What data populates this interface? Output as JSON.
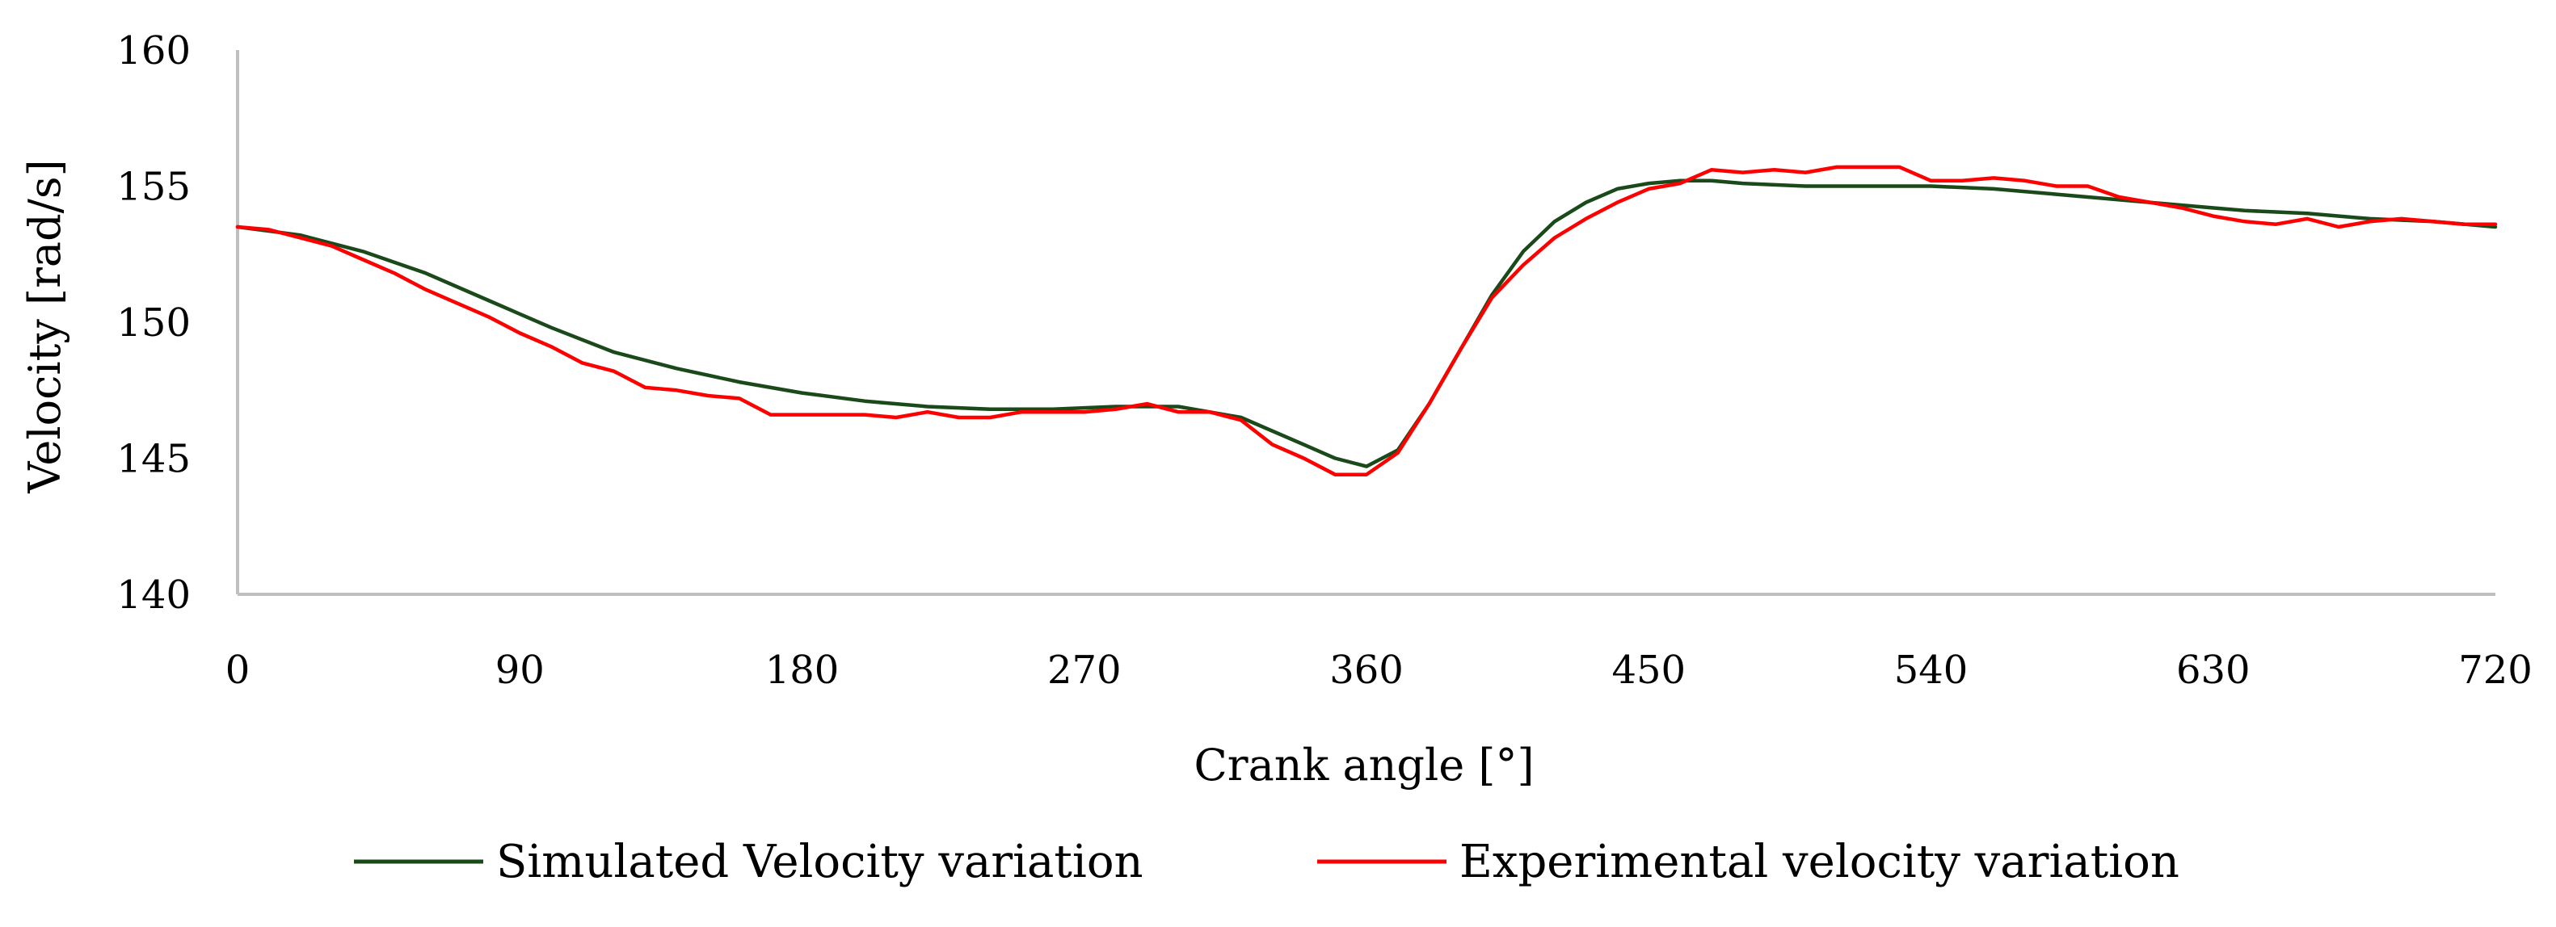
{
  "chart_data": {
    "type": "line",
    "title": "",
    "xlabel": "Crank angle [°]",
    "ylabel": "Velocity [rad/s]",
    "xlim": [
      0,
      720
    ],
    "ylim": [
      140,
      160
    ],
    "x_ticks": [
      "0",
      "90",
      "180",
      "270",
      "360",
      "450",
      "540",
      "630",
      "720"
    ],
    "x_tick_values": [
      0,
      90,
      180,
      270,
      360,
      450,
      540,
      630,
      720
    ],
    "y_ticks": [
      "140",
      "145",
      "150",
      "155",
      "160"
    ],
    "y_tick_values": [
      140,
      145,
      150,
      155,
      160
    ],
    "grid": false,
    "legend_position": "bottom",
    "series": [
      {
        "name": "Simulated Velocity variation",
        "color": "#1a4a1a",
        "x": [
          0,
          20,
          40,
          60,
          80,
          100,
          120,
          140,
          160,
          180,
          200,
          220,
          240,
          260,
          280,
          300,
          320,
          340,
          350,
          360,
          370,
          380,
          390,
          400,
          410,
          420,
          430,
          440,
          450,
          460,
          470,
          480,
          500,
          520,
          540,
          560,
          580,
          600,
          620,
          640,
          660,
          680,
          700,
          720
        ],
        "y": [
          153.5,
          153.2,
          152.6,
          151.8,
          150.8,
          149.8,
          148.9,
          148.3,
          147.8,
          147.4,
          147.1,
          146.9,
          146.8,
          146.8,
          146.9,
          146.9,
          146.5,
          145.5,
          145.0,
          144.7,
          145.3,
          147.0,
          149.0,
          151.0,
          152.6,
          153.7,
          154.4,
          154.9,
          155.1,
          155.2,
          155.2,
          155.1,
          155.0,
          155.0,
          155.0,
          154.9,
          154.7,
          154.5,
          154.3,
          154.1,
          154.0,
          153.8,
          153.7,
          153.5
        ]
      },
      {
        "name": "Experimental velocity variation",
        "color": "#ff0000",
        "x": [
          0,
          10,
          20,
          30,
          40,
          50,
          60,
          70,
          80,
          90,
          100,
          110,
          120,
          130,
          140,
          150,
          160,
          170,
          180,
          190,
          200,
          210,
          220,
          230,
          240,
          250,
          260,
          270,
          280,
          290,
          300,
          310,
          320,
          330,
          340,
          350,
          360,
          370,
          380,
          390,
          400,
          410,
          420,
          430,
          440,
          450,
          460,
          470,
          480,
          490,
          500,
          510,
          520,
          530,
          540,
          550,
          560,
          570,
          580,
          590,
          600,
          610,
          620,
          630,
          640,
          650,
          660,
          670,
          680,
          690,
          700,
          710,
          720
        ],
        "y": [
          153.5,
          153.4,
          153.1,
          152.8,
          152.3,
          151.8,
          151.2,
          150.7,
          150.2,
          149.6,
          149.1,
          148.5,
          148.2,
          147.6,
          147.5,
          147.3,
          147.2,
          146.6,
          146.6,
          146.6,
          146.6,
          146.5,
          146.7,
          146.5,
          146.5,
          146.7,
          146.7,
          146.7,
          146.8,
          147.0,
          146.7,
          146.7,
          146.4,
          145.5,
          145.0,
          144.4,
          144.4,
          145.2,
          147.0,
          149.0,
          150.9,
          152.1,
          153.1,
          153.8,
          154.4,
          154.9,
          155.1,
          155.6,
          155.5,
          155.6,
          155.5,
          155.7,
          155.7,
          155.7,
          155.2,
          155.2,
          155.3,
          155.2,
          155.0,
          155.0,
          154.6,
          154.4,
          154.2,
          153.9,
          153.7,
          153.6,
          153.8,
          153.5,
          153.7,
          153.8,
          153.7,
          153.6,
          153.6
        ]
      }
    ]
  }
}
